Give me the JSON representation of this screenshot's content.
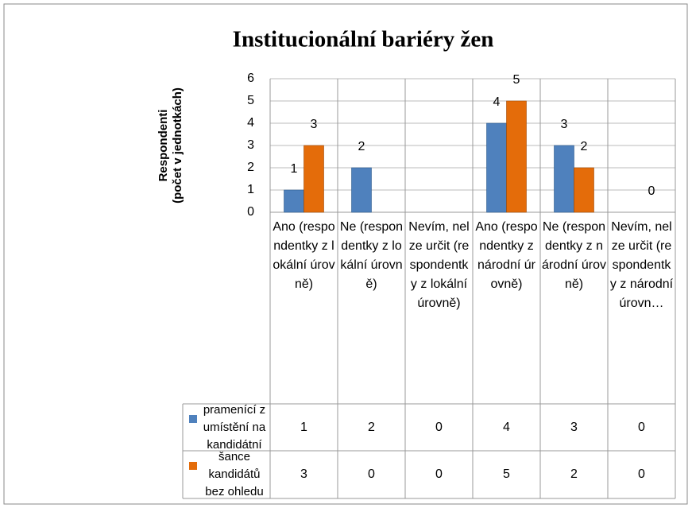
{
  "chart_data": {
    "type": "bar",
    "title": "Institucionální bariéry žen",
    "y_label": "Respondenti\n(počet v jednotkách)",
    "categories": [
      "Ano (respondentky z lokální úrovně)",
      "Ne (respondentky z lokální úrovně)",
      "Nevím, nelze určit (respondentky z lokální úrovně)",
      "Ano (respondentky z národní úrovně)",
      "Ne (respondentky z národní úrovně)",
      "Nevím, nelze určit (respondentky z národní úrovn…"
    ],
    "series": [
      {
        "name": "Diskriminace pramenící z umístění na kandidátní listině",
        "color": "#4f81bd",
        "values": [
          1,
          2,
          0,
          4,
          3,
          0
        ],
        "value_labels": [
          "1",
          "2",
          null,
          "4",
          "3",
          null
        ]
      },
      {
        "name": "Vyrovnané šance kandidátů bez ohledu na pohlaví",
        "color": "#e46c0a",
        "values": [
          3,
          0,
          0,
          5,
          2,
          0
        ],
        "value_labels": [
          "3",
          null,
          null,
          "5",
          "2",
          "0"
        ]
      }
    ],
    "ylim": [
      0,
      6
    ],
    "yticks": [
      0,
      1,
      2,
      3,
      4,
      5,
      6
    ],
    "grid": true,
    "data_table": true
  }
}
